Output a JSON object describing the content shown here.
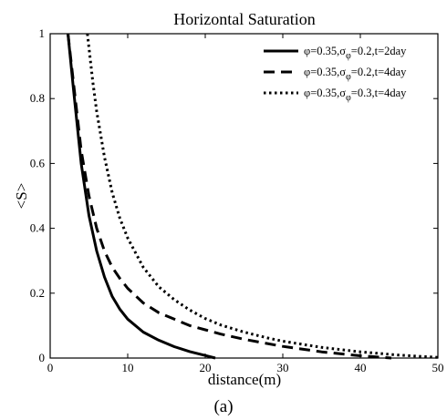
{
  "caption": "(a)",
  "chart_data": {
    "type": "line",
    "title": "Horizontal Saturation",
    "xlabel": "distance(m)",
    "ylabel": "<S>",
    "xlim": [
      0,
      50
    ],
    "ylim": [
      0,
      1
    ],
    "xticks": [
      "0",
      "10",
      "20",
      "30",
      "40",
      "50"
    ],
    "yticks": [
      "0",
      "0.2",
      "0.4",
      "0.6",
      "0.8",
      "1"
    ],
    "grid": false,
    "legend_position": "top-right",
    "series": [
      {
        "name": "φ=0.35,σφ=0.2,t=2day",
        "legend": {
          "base": "φ=0.35,σ",
          "sub": "φ",
          "rest": "=0.2,t=2day"
        },
        "style": "solid",
        "x": [
          2.3,
          3,
          4,
          5,
          6,
          7,
          8,
          9,
          10,
          12,
          14,
          16,
          18,
          20,
          21.3
        ],
        "y": [
          1.0,
          0.83,
          0.6,
          0.44,
          0.33,
          0.25,
          0.19,
          0.15,
          0.12,
          0.08,
          0.055,
          0.035,
          0.02,
          0.008,
          0.0
        ]
      },
      {
        "name": "φ=0.35,σφ=0.2,t=4day",
        "legend": {
          "base": "φ=0.35,σ",
          "sub": "φ",
          "rest": "=0.2,t=4day"
        },
        "style": "dashed",
        "x": [
          2.3,
          3,
          4,
          5,
          6,
          7,
          8,
          9,
          10,
          12,
          14,
          16,
          18,
          20,
          22,
          25,
          30,
          35,
          40,
          44
        ],
        "y": [
          1.0,
          0.85,
          0.64,
          0.5,
          0.4,
          0.33,
          0.28,
          0.245,
          0.215,
          0.17,
          0.14,
          0.12,
          0.1,
          0.087,
          0.074,
          0.058,
          0.036,
          0.019,
          0.007,
          0.0
        ]
      },
      {
        "name": "φ=0.35,σφ=0.3,t=4day",
        "legend": {
          "base": "φ=0.35,σ",
          "sub": "φ",
          "rest": "=0.3,t=4day"
        },
        "style": "dotted",
        "x": [
          4.8,
          5.5,
          6,
          7,
          8,
          9,
          10,
          12,
          14,
          16,
          18,
          20,
          22,
          25,
          28,
          30,
          35,
          40,
          45,
          50
        ],
        "y": [
          1.0,
          0.85,
          0.76,
          0.62,
          0.51,
          0.43,
          0.37,
          0.28,
          0.22,
          0.18,
          0.148,
          0.122,
          0.102,
          0.08,
          0.062,
          0.052,
          0.033,
          0.019,
          0.009,
          0.002
        ]
      }
    ]
  }
}
